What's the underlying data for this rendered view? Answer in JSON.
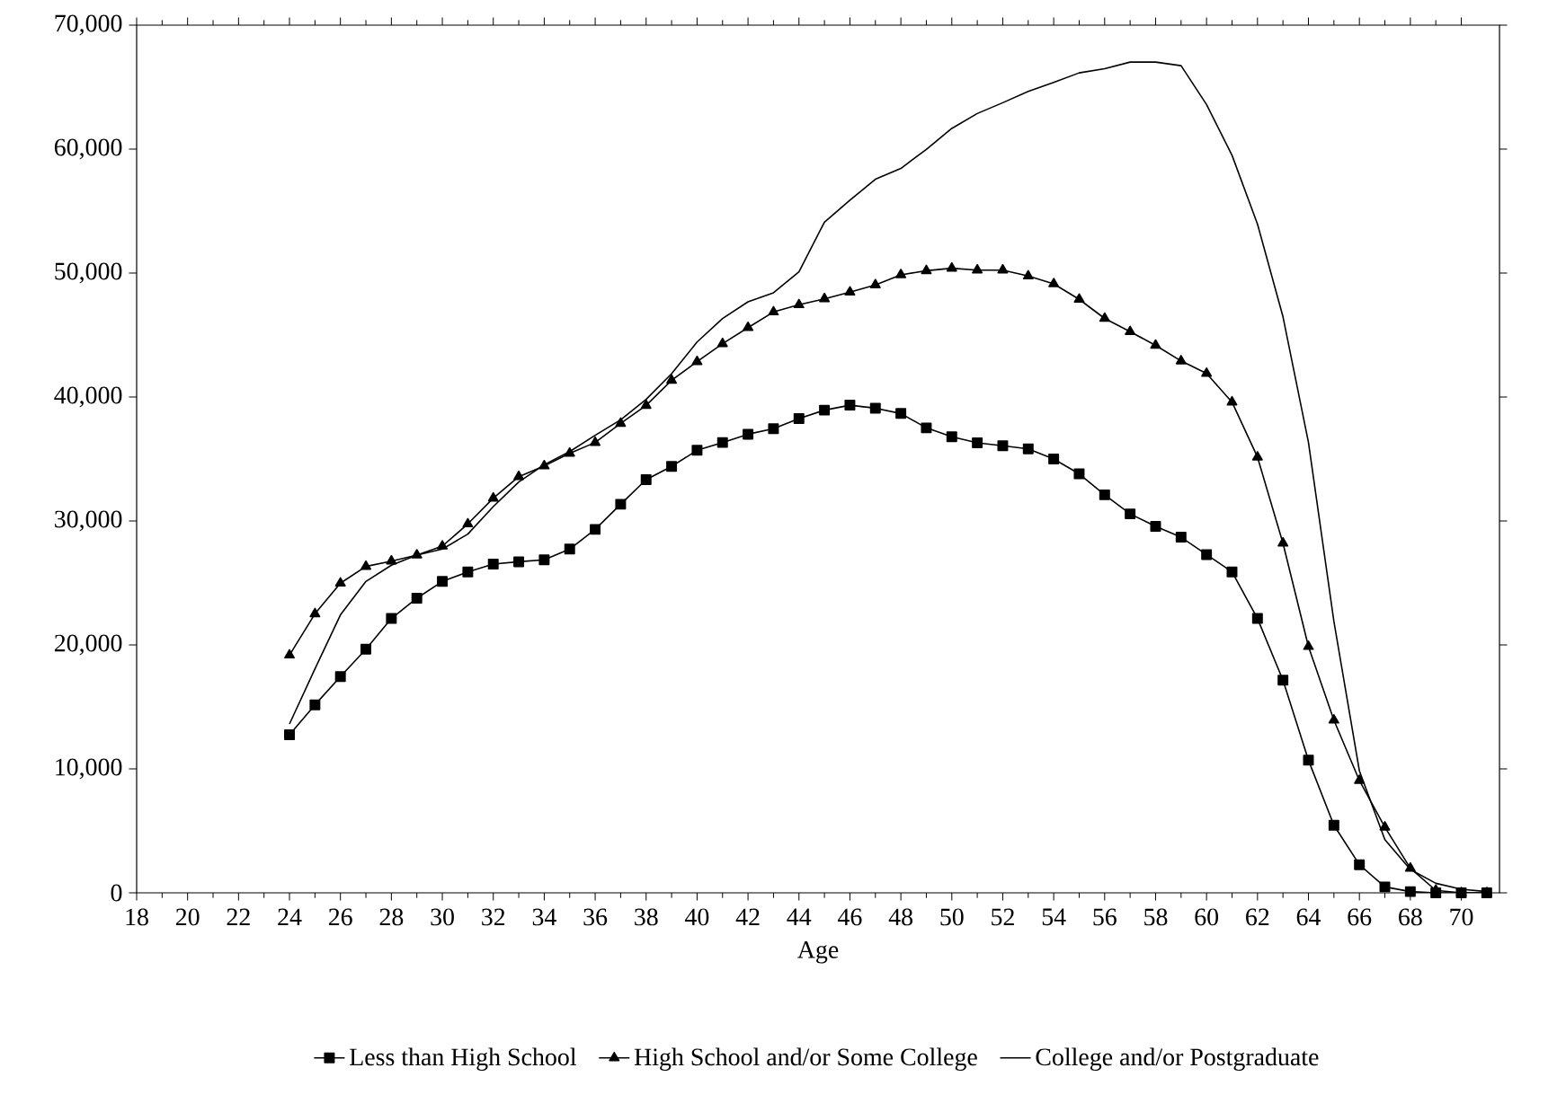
{
  "chart_data": {
    "type": "line",
    "xlabel": "Age",
    "x": [
      24,
      25,
      26,
      27,
      28,
      29,
      30,
      31,
      32,
      33,
      34,
      35,
      36,
      37,
      38,
      39,
      40,
      41,
      42,
      43,
      44,
      45,
      46,
      47,
      48,
      49,
      50,
      51,
      52,
      53,
      54,
      55,
      56,
      57,
      58,
      59,
      60,
      61,
      62,
      63,
      64,
      65,
      66,
      67,
      68,
      69,
      70,
      71
    ],
    "series": [
      {
        "name": "Less than High School",
        "color": "#000000",
        "marker": "square",
        "values": [
          12750,
          15170,
          17440,
          19660,
          22130,
          23770,
          25120,
          25890,
          26520,
          26710,
          26860,
          27730,
          29320,
          31350,
          33330,
          34400,
          35700,
          36330,
          37000,
          37440,
          38260,
          38940,
          39340,
          39100,
          38670,
          37510,
          36790,
          36310,
          36070,
          35820,
          35000,
          33800,
          32110,
          30570,
          29560,
          28690,
          27290,
          25890,
          22130,
          17160,
          10700,
          5450,
          2270,
          480,
          100,
          0,
          0,
          0
        ]
      },
      {
        "name": "High School and/or Some College",
        "color": "#000000",
        "marker": "triangle",
        "values": [
          19180,
          22510,
          24980,
          26330,
          26760,
          27250,
          27970,
          29760,
          31840,
          33570,
          34440,
          35460,
          36330,
          37870,
          39320,
          41350,
          42850,
          44300,
          45600,
          46860,
          47440,
          47920,
          48460,
          49040,
          49860,
          50190,
          50390,
          50240,
          50240,
          49760,
          49130,
          47880,
          46340,
          45270,
          44170,
          42910,
          41900,
          39590,
          35150,
          28210,
          19870,
          13930,
          9060,
          5300,
          1980,
          200,
          0,
          0
        ]
      },
      {
        "name": "College and/or Postgraduate",
        "color": "#000000",
        "marker": "none",
        "values": [
          13620,
          18070,
          22420,
          25120,
          26430,
          27250,
          27730,
          28940,
          31160,
          33140,
          34540,
          35600,
          36910,
          38160,
          39810,
          41880,
          44440,
          46330,
          47680,
          48410,
          50100,
          54110,
          55880,
          57570,
          58440,
          59980,
          61670,
          62870,
          63740,
          64660,
          65380,
          66150,
          66490,
          67020,
          67020,
          66730,
          63600,
          59500,
          53950,
          46480,
          36350,
          21890,
          9840,
          4290,
          1880,
          770,
          290,
          100
        ]
      }
    ],
    "xlim": [
      18,
      71.5
    ],
    "xticks": [
      18,
      20,
      22,
      24,
      26,
      28,
      30,
      32,
      34,
      36,
      38,
      40,
      42,
      44,
      46,
      48,
      50,
      52,
      54,
      56,
      58,
      60,
      62,
      64,
      66,
      68,
      70
    ],
    "ylim": [
      0,
      70000
    ],
    "yticks": [
      {
        "value": 0,
        "label": "0"
      },
      {
        "value": 10000,
        "label": "10,000"
      },
      {
        "value": 20000,
        "label": "20,000"
      },
      {
        "value": 30000,
        "label": "30,000"
      },
      {
        "value": 40000,
        "label": "40,000"
      },
      {
        "value": 50000,
        "label": "50,000"
      },
      {
        "value": 60000,
        "label": "60,000"
      },
      {
        "value": 70000,
        "label": "70,000"
      }
    ],
    "grid": false,
    "legend": "bottom",
    "line_style": "solid"
  }
}
